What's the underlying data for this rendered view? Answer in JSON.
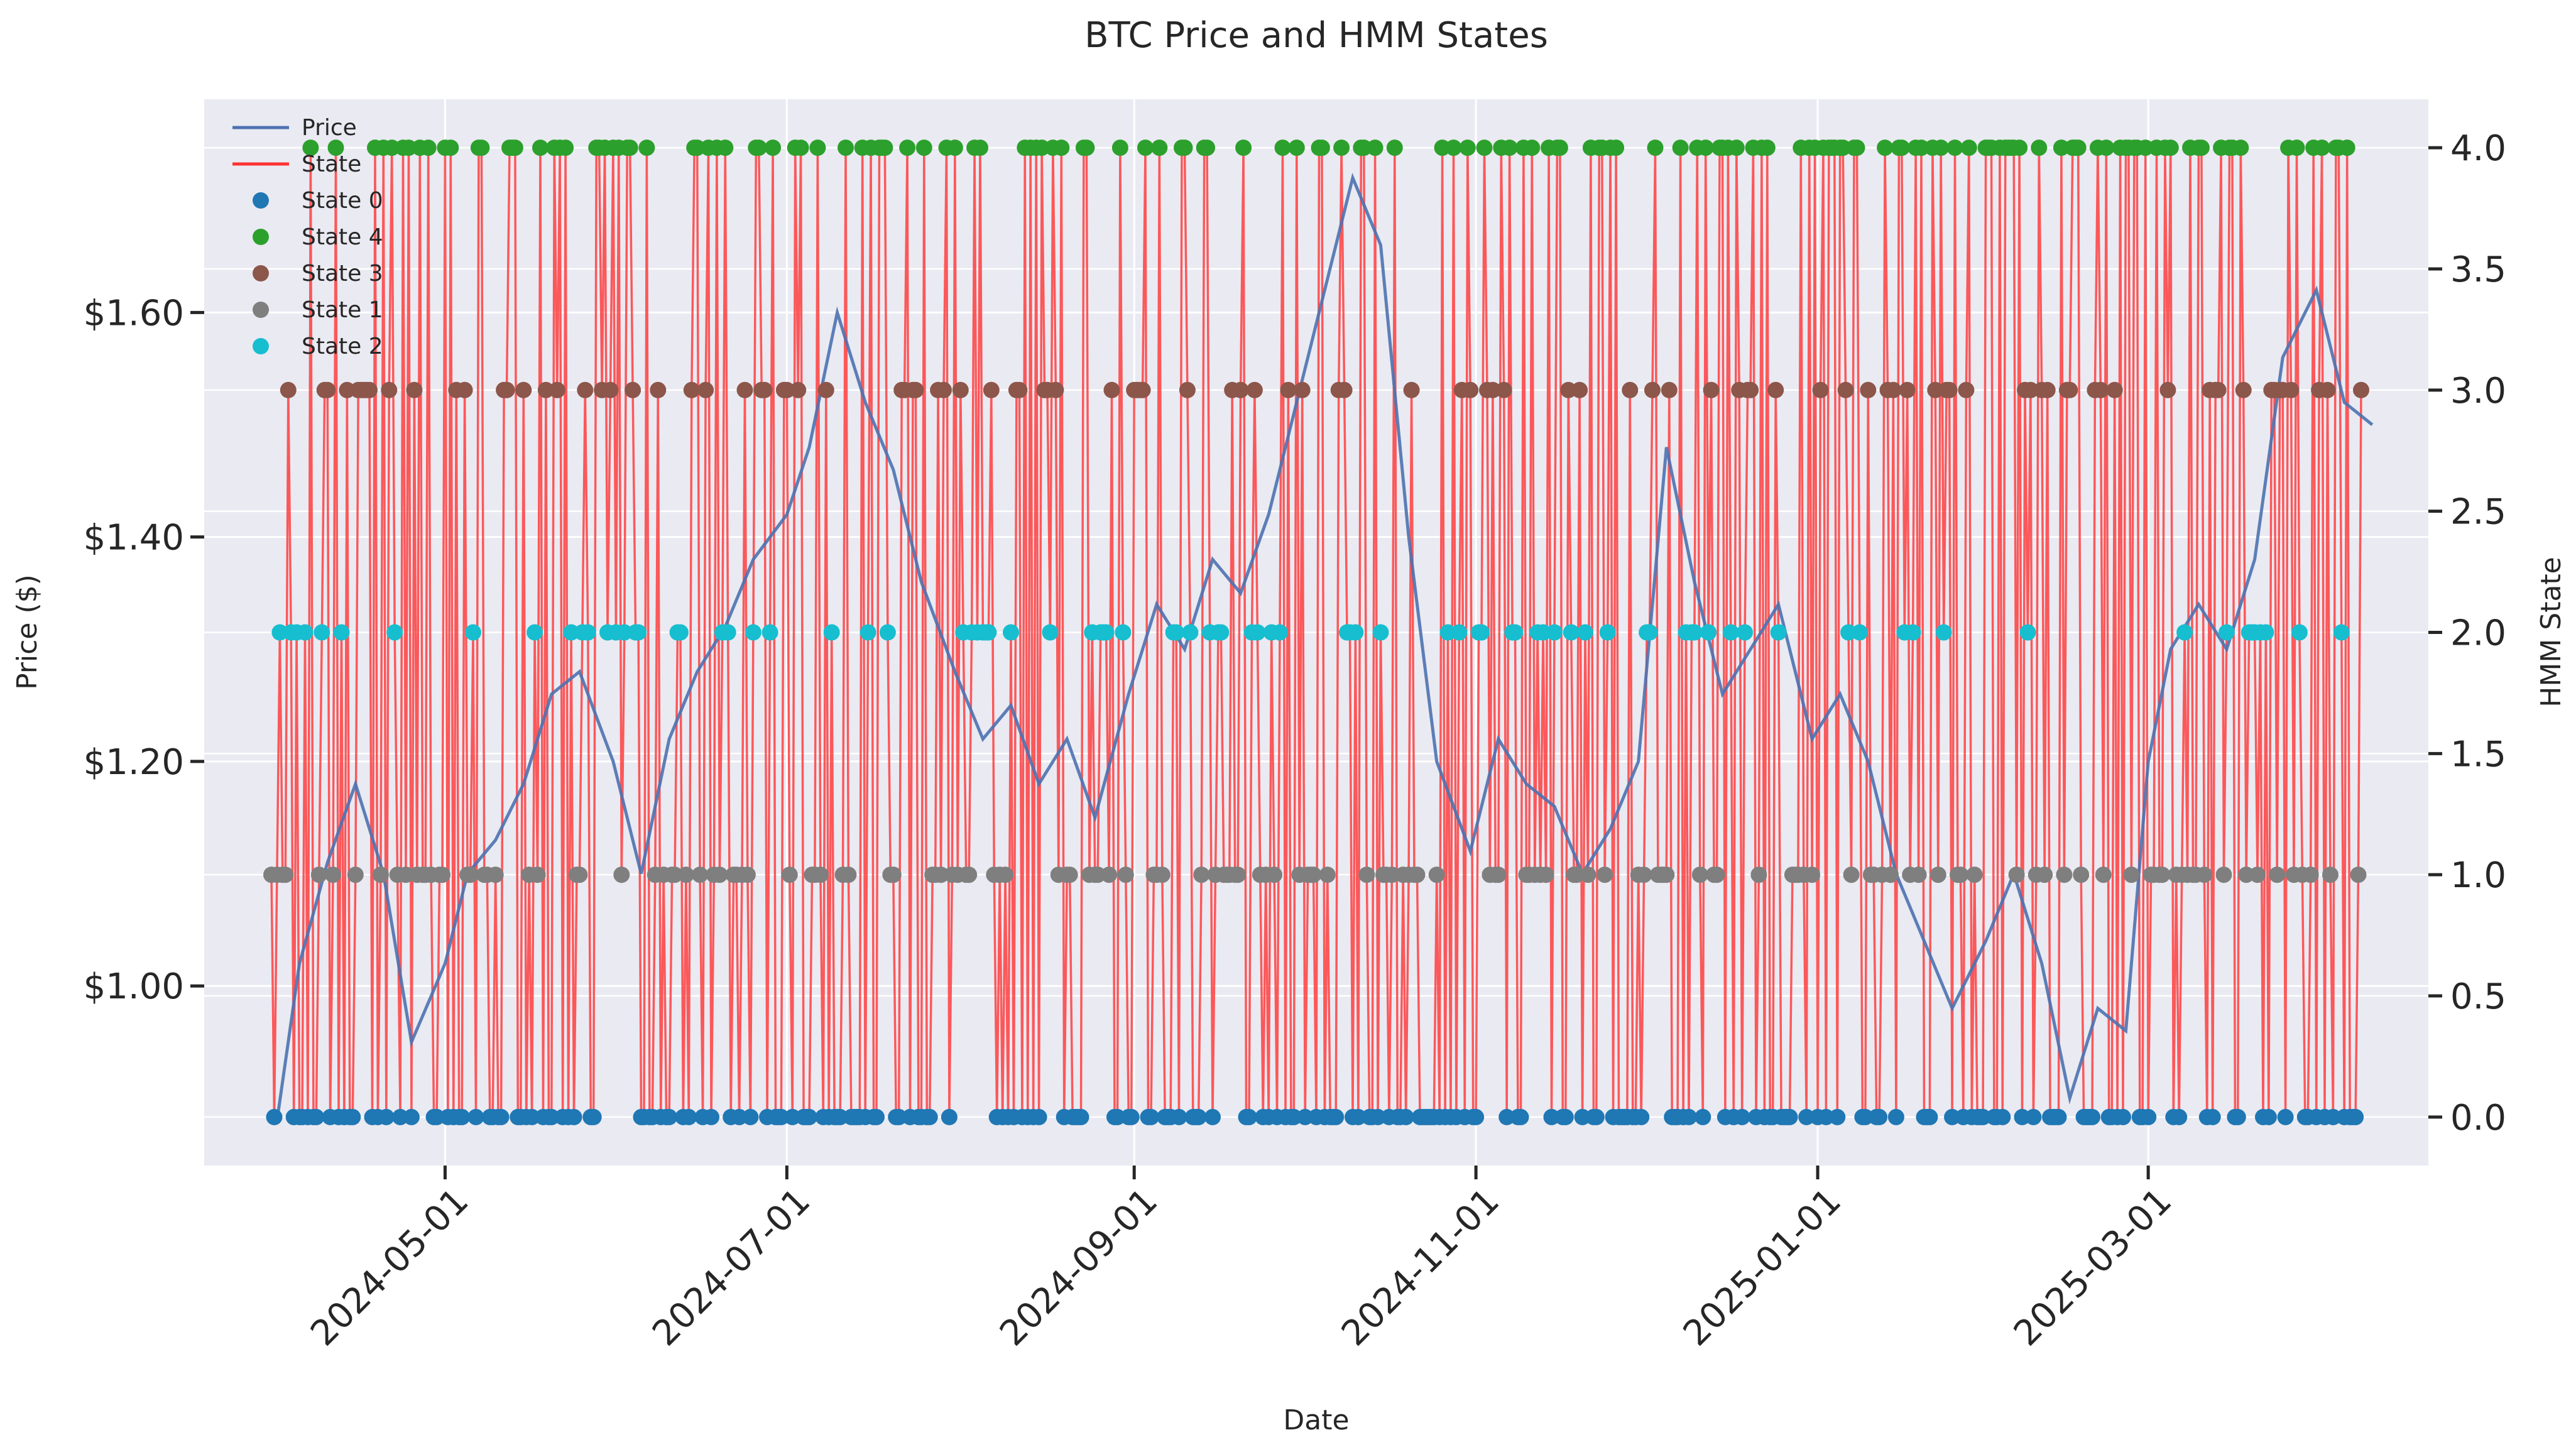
{
  "chart_data": {
    "type": "line",
    "title": "BTC Price and HMM States",
    "xlabel": "Date",
    "ylabel_left": "Price ($)",
    "ylabel_right": "HMM State",
    "x_range": [
      "2024-03-19",
      "2025-04-20"
    ],
    "x_ticks": [
      "2024-05-01",
      "2024-07-01",
      "2024-09-01",
      "2024-11-01",
      "2025-01-01",
      "2025-03-01"
    ],
    "y_left_range": [
      0.84,
      1.79
    ],
    "y_left_ticks": [
      "$1.00",
      "$1.20",
      "$1.40",
      "$1.60"
    ],
    "y_left_tick_values": [
      1.0,
      1.2,
      1.4,
      1.6
    ],
    "y_right_range": [
      -0.2,
      4.2
    ],
    "y_right_ticks": [
      "0.0",
      "0.5",
      "1.0",
      "1.5",
      "2.0",
      "2.5",
      "3.0",
      "3.5",
      "4.0"
    ],
    "y_right_tick_values": [
      0,
      0.5,
      1.0,
      1.5,
      2.0,
      2.5,
      3.0,
      3.5,
      4.0
    ],
    "grid": true,
    "legend_position": "top-left",
    "legend": [
      "Price",
      "State",
      "State 0",
      "State 4",
      "State 3",
      "State 1",
      "State 2"
    ],
    "colors": {
      "price": "#4c72b0",
      "state_line": "#ff3333",
      "state_0": "#1f77b4",
      "state_4": "#2ca02c",
      "state_3": "#8c564b",
      "state_1": "#7f7f7f",
      "state_2": "#17becf",
      "plot_bg": "#eaeaf2",
      "grid": "#ffffff"
    },
    "price_series": {
      "name": "Price",
      "x": [
        "2024-04-01",
        "2024-04-05",
        "2024-04-10",
        "2024-04-15",
        "2024-04-20",
        "2024-04-25",
        "2024-05-01",
        "2024-05-05",
        "2024-05-10",
        "2024-05-15",
        "2024-05-20",
        "2024-05-25",
        "2024-05-31",
        "2024-06-05",
        "2024-06-10",
        "2024-06-15",
        "2024-06-20",
        "2024-06-25",
        "2024-07-01",
        "2024-07-05",
        "2024-07-10",
        "2024-07-15",
        "2024-07-20",
        "2024-07-25",
        "2024-07-31",
        "2024-08-05",
        "2024-08-10",
        "2024-08-15",
        "2024-08-20",
        "2024-08-25",
        "2024-08-31",
        "2024-09-05",
        "2024-09-10",
        "2024-09-15",
        "2024-09-20",
        "2024-09-25",
        "2024-09-30",
        "2024-10-05",
        "2024-10-10",
        "2024-10-15",
        "2024-10-20",
        "2024-10-25",
        "2024-10-31",
        "2024-11-05",
        "2024-11-10",
        "2024-11-15",
        "2024-11-20",
        "2024-11-25",
        "2024-11-30",
        "2024-12-05",
        "2024-12-10",
        "2024-12-15",
        "2024-12-20",
        "2024-12-25",
        "2024-12-31",
        "2025-01-05",
        "2025-01-10",
        "2025-01-15",
        "2025-01-20",
        "2025-01-25",
        "2025-01-31",
        "2025-02-05",
        "2025-02-10",
        "2025-02-15",
        "2025-02-20",
        "2025-02-25",
        "2025-03-01",
        "2025-03-05",
        "2025-03-10",
        "2025-03-15",
        "2025-03-20",
        "2025-03-25",
        "2025-03-31",
        "2025-04-05",
        "2025-04-10"
      ],
      "values": [
        0.88,
        1.02,
        1.11,
        1.18,
        1.1,
        0.95,
        1.02,
        1.1,
        1.13,
        1.18,
        1.26,
        1.28,
        1.2,
        1.1,
        1.22,
        1.28,
        1.32,
        1.38,
        1.42,
        1.48,
        1.6,
        1.52,
        1.46,
        1.36,
        1.28,
        1.22,
        1.25,
        1.18,
        1.22,
        1.15,
        1.26,
        1.34,
        1.3,
        1.38,
        1.35,
        1.42,
        1.52,
        1.62,
        1.72,
        1.66,
        1.4,
        1.2,
        1.12,
        1.22,
        1.18,
        1.16,
        1.1,
        1.14,
        1.2,
        1.48,
        1.36,
        1.26,
        1.3,
        1.34,
        1.22,
        1.26,
        1.2,
        1.1,
        1.04,
        0.98,
        1.04,
        1.1,
        1.02,
        0.9,
        0.98,
        0.96,
        1.2,
        1.3,
        1.34,
        1.3,
        1.38,
        1.56,
        1.62,
        1.52,
        1.5
      ]
    },
    "state_series": {
      "name": "State",
      "x_start": "2024-03-31",
      "x_end": "2025-04-08",
      "levels": [
        0,
        1,
        2,
        3,
        4
      ],
      "points_per_day": 2
    },
    "state_markers": [
      {
        "name": "State 0",
        "value": 0
      },
      {
        "name": "State 4",
        "value": 4
      },
      {
        "name": "State 3",
        "value": 3
      },
      {
        "name": "State 1",
        "value": 1
      },
      {
        "name": "State 2",
        "value": 2
      }
    ]
  }
}
